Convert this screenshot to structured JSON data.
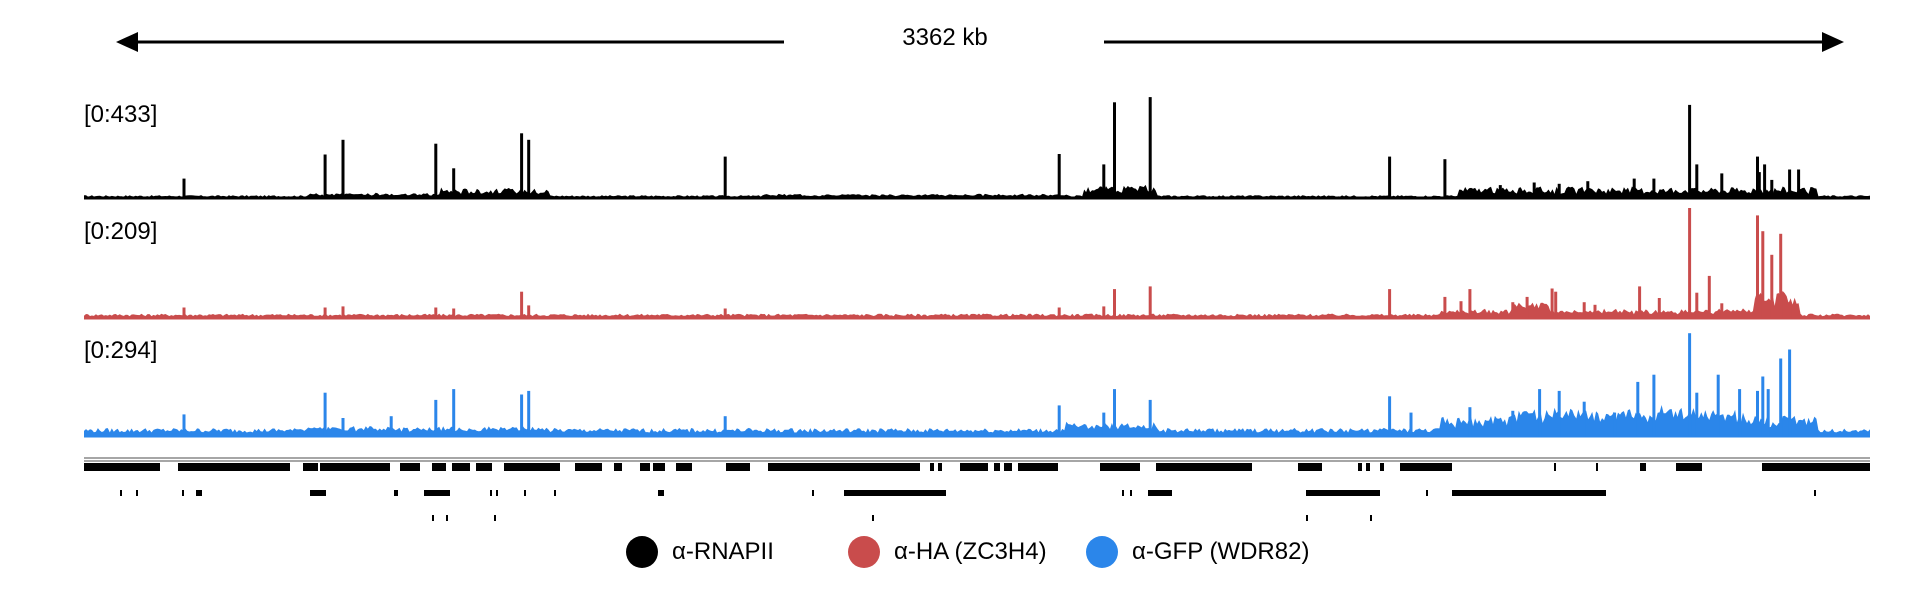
{
  "scale_bar": {
    "label": "3362 kb"
  },
  "tracks": [
    {
      "name": "α-RNAPII",
      "range_label": "[0:433]",
      "max": 433,
      "color": "#000000"
    },
    {
      "name": "α-HA (ZC3H4)",
      "range_label": "[0:209]",
      "max": 209,
      "color": "#c94c4c"
    },
    {
      "name": "α-GFP (WDR82)",
      "range_label": "[0:294]",
      "max": 294,
      "color": "#2b86ea"
    }
  ],
  "legend": [
    {
      "label": "α-RNAPII",
      "color": "#000000"
    },
    {
      "label": "α-HA (ZC3H4)",
      "color": "#c94c4c"
    },
    {
      "label": "α-GFP (WDR82)",
      "color": "#2b86ea"
    }
  ],
  "chart_data": {
    "type": "area",
    "x_span_kb": 3362,
    "x_unit": "fraction of locus",
    "series": [
      {
        "name": "α-RNAPII",
        "color": "#000000",
        "ylim": [
          0,
          433
        ],
        "baseline": 8,
        "peaks": [
          [
            0.056,
            75
          ],
          [
            0.135,
            168
          ],
          [
            0.145,
            225
          ],
          [
            0.197,
            210
          ],
          [
            0.207,
            115
          ],
          [
            0.245,
            250
          ],
          [
            0.249,
            225
          ],
          [
            0.359,
            160
          ],
          [
            0.546,
            170
          ],
          [
            0.571,
            130
          ],
          [
            0.577,
            370
          ],
          [
            0.597,
            390
          ],
          [
            0.731,
            160
          ],
          [
            0.762,
            150
          ],
          [
            0.778,
            35
          ],
          [
            0.793,
            50
          ],
          [
            0.812,
            60
          ],
          [
            0.826,
            55
          ],
          [
            0.842,
            65
          ],
          [
            0.868,
            75
          ],
          [
            0.879,
            75
          ],
          [
            0.899,
            360
          ],
          [
            0.903,
            130
          ],
          [
            0.917,
            95
          ],
          [
            0.938,
            100
          ],
          [
            0.937,
            160
          ],
          [
            0.941,
            130
          ],
          [
            0.955,
            110
          ],
          [
            0.96,
            110
          ],
          [
            0.945,
            70
          ]
        ],
        "bumps": [
          [
            0.2,
            0.26,
            30
          ],
          [
            0.56,
            0.6,
            40
          ],
          [
            0.77,
            0.97,
            35
          ],
          [
            0.125,
            0.2,
            10
          ],
          [
            0.38,
            0.55,
            6
          ]
        ]
      },
      {
        "name": "α-HA (ZC3H4)",
        "color": "#c94c4c",
        "ylim": [
          0,
          209
        ],
        "baseline": 6,
        "peaks": [
          [
            0.056,
            20
          ],
          [
            0.135,
            20
          ],
          [
            0.145,
            22
          ],
          [
            0.197,
            20
          ],
          [
            0.207,
            18
          ],
          [
            0.245,
            50
          ],
          [
            0.249,
            24
          ],
          [
            0.359,
            18
          ],
          [
            0.546,
            20
          ],
          [
            0.571,
            22
          ],
          [
            0.577,
            55
          ],
          [
            0.597,
            60
          ],
          [
            0.731,
            55
          ],
          [
            0.771,
            32
          ],
          [
            0.776,
            55
          ],
          [
            0.762,
            40
          ],
          [
            0.8,
            30
          ],
          [
            0.808,
            40
          ],
          [
            0.822,
            56
          ],
          [
            0.824,
            50
          ],
          [
            0.84,
            30
          ],
          [
            0.846,
            25
          ],
          [
            0.871,
            60
          ],
          [
            0.899,
            210
          ],
          [
            0.903,
            48
          ],
          [
            0.882,
            38
          ],
          [
            0.91,
            80
          ],
          [
            0.917,
            28
          ],
          [
            0.937,
            195
          ],
          [
            0.94,
            165
          ],
          [
            0.95,
            160
          ],
          [
            0.945,
            120
          ],
          [
            0.955,
            30
          ]
        ],
        "bumps": [
          [
            0.76,
            0.96,
            10
          ],
          [
            0.935,
            0.96,
            40
          ],
          [
            0.8,
            0.82,
            16
          ]
        ]
      },
      {
        "name": "α-GFP (WDR82)",
        "color": "#2b86ea",
        "ylim": [
          0,
          294
        ],
        "baseline": 16,
        "peaks": [
          [
            0.056,
            60
          ],
          [
            0.135,
            120
          ],
          [
            0.145,
            50
          ],
          [
            0.172,
            55
          ],
          [
            0.197,
            100
          ],
          [
            0.207,
            130
          ],
          [
            0.245,
            115
          ],
          [
            0.249,
            125
          ],
          [
            0.359,
            55
          ],
          [
            0.546,
            85
          ],
          [
            0.571,
            65
          ],
          [
            0.577,
            130
          ],
          [
            0.597,
            100
          ],
          [
            0.731,
            110
          ],
          [
            0.743,
            65
          ],
          [
            0.776,
            80
          ],
          [
            0.8,
            70
          ],
          [
            0.815,
            130
          ],
          [
            0.826,
            125
          ],
          [
            0.84,
            95
          ],
          [
            0.857,
            65
          ],
          [
            0.87,
            150
          ],
          [
            0.879,
            170
          ],
          [
            0.899,
            285
          ],
          [
            0.903,
            120
          ],
          [
            0.915,
            170
          ],
          [
            0.927,
            130
          ],
          [
            0.937,
            125
          ],
          [
            0.94,
            165
          ],
          [
            0.95,
            215
          ],
          [
            0.955,
            240
          ],
          [
            0.943,
            130
          ]
        ],
        "bumps": [
          [
            0.55,
            0.6,
            20
          ],
          [
            0.76,
            0.97,
            40
          ],
          [
            0.8,
            0.93,
            25
          ],
          [
            0.12,
            0.26,
            6
          ]
        ]
      }
    ]
  }
}
